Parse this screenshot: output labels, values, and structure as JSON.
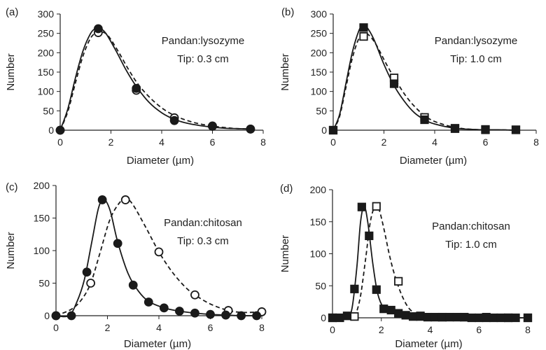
{
  "colors": {
    "ink": "#1a1a1a",
    "axis": "#222222"
  },
  "chart_data": [
    {
      "panel_label": "(a)",
      "type": "scatter",
      "annotation": [
        "Pandan:lysozyme",
        "Tip: 0.3 cm"
      ],
      "xlabel": "Diameter (µm)",
      "ylabel": "Number",
      "xlim": [
        0,
        8
      ],
      "ylim": [
        0,
        300
      ],
      "xticks": [
        0,
        2,
        4,
        6,
        8
      ],
      "yticks": [
        0,
        50,
        100,
        150,
        200,
        250,
        300
      ],
      "series": [
        {
          "name": "filled",
          "marker": "circle",
          "filled": true,
          "line": "solid",
          "x": [
            0,
            1.5,
            3.0,
            4.5,
            6.0,
            7.5
          ],
          "y": [
            0,
            262,
            108,
            25,
            11,
            3
          ],
          "curve_x": [
            0,
            0.3,
            0.6,
            0.9,
            1.2,
            1.4,
            1.55,
            1.8,
            2.2,
            2.6,
            3.0,
            3.5,
            4.0,
            4.5,
            5.0,
            5.5,
            6.0,
            6.5,
            7.0,
            7.5
          ],
          "curve_y": [
            0,
            55,
            135,
            205,
            250,
            263,
            264,
            250,
            205,
            155,
            113,
            72,
            45,
            28,
            18,
            12,
            8,
            5,
            4,
            3
          ]
        },
        {
          "name": "open",
          "marker": "circle",
          "filled": false,
          "line": "dashed",
          "x": [
            0,
            1.5,
            3.0,
            4.5,
            6.0,
            7.5
          ],
          "y": [
            0,
            252,
            103,
            32,
            10,
            3
          ],
          "curve_x": [
            0,
            0.3,
            0.6,
            0.9,
            1.2,
            1.45,
            1.65,
            1.9,
            2.3,
            2.7,
            3.1,
            3.6,
            4.1,
            4.6,
            5.1,
            5.6,
            6.1,
            6.6,
            7.0,
            7.5
          ],
          "curve_y": [
            0,
            48,
            122,
            192,
            238,
            253,
            254,
            243,
            202,
            156,
            116,
            80,
            53,
            35,
            23,
            15,
            10,
            6,
            4,
            3
          ]
        }
      ]
    },
    {
      "panel_label": "(b)",
      "type": "scatter",
      "annotation": [
        "Pandan:lysozyme",
        "Tip: 1.0 cm"
      ],
      "xlabel": "Diameter (µm)",
      "ylabel": "Number",
      "xlim": [
        0,
        8
      ],
      "ylim": [
        0,
        300
      ],
      "xticks": [
        0,
        2,
        4,
        6,
        8
      ],
      "yticks": [
        0,
        50,
        100,
        150,
        200,
        250,
        300
      ],
      "series": [
        {
          "name": "filled",
          "marker": "square",
          "filled": true,
          "line": "solid",
          "x": [
            0,
            1.2,
            2.4,
            3.6,
            4.8,
            6.0,
            7.2
          ],
          "y": [
            0,
            265,
            120,
            27,
            5,
            2,
            1
          ],
          "curve_x": [
            0,
            0.25,
            0.5,
            0.75,
            1.0,
            1.15,
            1.3,
            1.6,
            2.0,
            2.4,
            2.8,
            3.2,
            3.6,
            4.0,
            4.8,
            5.5,
            6.0,
            6.5,
            7.2
          ],
          "curve_y": [
            0,
            40,
            120,
            200,
            255,
            270,
            268,
            235,
            170,
            115,
            75,
            45,
            27,
            16,
            5,
            2,
            1,
            1,
            0
          ]
        },
        {
          "name": "open",
          "marker": "square",
          "filled": false,
          "line": "dashed",
          "x": [
            0,
            1.2,
            2.4,
            3.6,
            4.8,
            6.0,
            7.2
          ],
          "y": [
            0,
            242,
            135,
            33,
            4,
            1,
            1
          ],
          "curve_x": [
            0,
            0.25,
            0.5,
            0.75,
            1.0,
            1.2,
            1.4,
            1.7,
            2.1,
            2.5,
            2.9,
            3.3,
            3.7,
            4.1,
            4.8,
            5.5,
            6.0,
            6.5,
            7.2
          ],
          "curve_y": [
            0,
            35,
            110,
            185,
            235,
            248,
            246,
            220,
            170,
            125,
            85,
            55,
            33,
            20,
            7,
            2,
            1,
            1,
            0
          ]
        }
      ]
    },
    {
      "panel_label": "(c)",
      "type": "scatter",
      "annotation": [
        "Pandan:chitosan",
        "Tip: 0.3 cm"
      ],
      "xlabel": "Diameter (µm)",
      "ylabel": "Number",
      "xlim": [
        0,
        8
      ],
      "ylim": [
        0,
        200
      ],
      "xticks": [
        0,
        2,
        4,
        6,
        8
      ],
      "yticks": [
        0,
        50,
        100,
        150,
        200
      ],
      "series": [
        {
          "name": "filled",
          "marker": "circle",
          "filled": true,
          "line": "solid",
          "x": [
            0,
            0.6,
            1.2,
            1.8,
            2.4,
            3.0,
            3.6,
            4.2,
            4.8,
            5.4,
            6.0,
            6.6,
            7.2,
            7.8
          ],
          "y": [
            0,
            0,
            67,
            178,
            111,
            47,
            21,
            12,
            7,
            4,
            2,
            1,
            0,
            0
          ],
          "curve_x": [
            0,
            0.5,
            0.8,
            1.1,
            1.4,
            1.65,
            1.85,
            2.1,
            2.4,
            2.8,
            3.2,
            3.6,
            4.2,
            4.8,
            5.4,
            6.0,
            6.6,
            7.2,
            7.8
          ],
          "curve_y": [
            0,
            0,
            20,
            55,
            115,
            165,
            179,
            162,
            113,
            65,
            38,
            22,
            12,
            7,
            4,
            2,
            1,
            0,
            0
          ]
        },
        {
          "name": "open",
          "marker": "circle",
          "filled": false,
          "line": "dashed",
          "x": [
            0,
            1.35,
            2.7,
            4.0,
            5.4,
            6.7,
            8.0
          ],
          "y": [
            0,
            50,
            178,
            98,
            32,
            8,
            6
          ],
          "curve_x": [
            0,
            0.6,
            1.0,
            1.35,
            1.7,
            2.1,
            2.5,
            2.75,
            3.0,
            3.5,
            4.0,
            4.5,
            5.0,
            5.4,
            6.0,
            6.7,
            7.3,
            8.0
          ],
          "curve_y": [
            0,
            10,
            25,
            50,
            95,
            148,
            175,
            179,
            170,
            135,
            98,
            68,
            45,
            32,
            18,
            8,
            5,
            6
          ]
        }
      ]
    },
    {
      "panel_label": "(d)",
      "type": "scatter",
      "annotation": [
        "Pandan:chitosan",
        "Tip: 1.0 cm"
      ],
      "xlabel": "Diameter (µm)",
      "ylabel": "Number",
      "xlim": [
        0,
        8
      ],
      "ylim": [
        0,
        200
      ],
      "xticks": [
        0,
        2,
        4,
        6,
        8
      ],
      "yticks": [
        0,
        50,
        100,
        150,
        200
      ],
      "series": [
        {
          "name": "filled",
          "marker": "square",
          "filled": true,
          "line": "solid",
          "x": [
            0,
            0.3,
            0.6,
            0.9,
            1.2,
            1.5,
            1.8,
            2.1,
            2.4,
            2.7,
            3.0,
            3.3,
            3.6,
            3.9,
            4.2,
            4.5,
            4.8,
            5.1,
            5.4,
            5.7,
            6.0,
            6.3,
            6.6,
            6.9,
            7.2,
            7.5,
            8.0
          ],
          "y": [
            0,
            0,
            3,
            45,
            173,
            128,
            44,
            14,
            12,
            7,
            4,
            2,
            2,
            1,
            1,
            1,
            1,
            1,
            1,
            0,
            0,
            0,
            0,
            0,
            0,
            0,
            0
          ],
          "curve_x": [
            0,
            0.6,
            0.8,
            1.0,
            1.15,
            1.3,
            1.45,
            1.65,
            1.85,
            2.1,
            2.4,
            3.0,
            4.0,
            5.0,
            6.0,
            7.0,
            8.0
          ],
          "curve_y": [
            0,
            2,
            15,
            80,
            150,
            174,
            148,
            85,
            38,
            15,
            8,
            3,
            1,
            0,
            0,
            0,
            0
          ]
        },
        {
          "name": "open",
          "marker": "square",
          "filled": false,
          "line": "dashed",
          "x": [
            0,
            0.9,
            1.8,
            2.7,
            3.6,
            4.5,
            5.4,
            6.3,
            7.2,
            8.0
          ],
          "y": [
            0,
            2,
            174,
            57,
            3,
            1,
            1,
            1,
            0,
            0
          ],
          "curve_x": [
            0,
            0.8,
            1.1,
            1.35,
            1.55,
            1.75,
            1.9,
            2.1,
            2.35,
            2.6,
            2.9,
            3.2,
            3.6,
            4.5,
            5.4,
            6.3,
            7.2,
            8.0
          ],
          "curve_y": [
            0,
            2,
            25,
            90,
            150,
            175,
            170,
            140,
            95,
            60,
            30,
            12,
            4,
            1,
            0,
            0,
            0,
            0
          ]
        }
      ]
    }
  ]
}
